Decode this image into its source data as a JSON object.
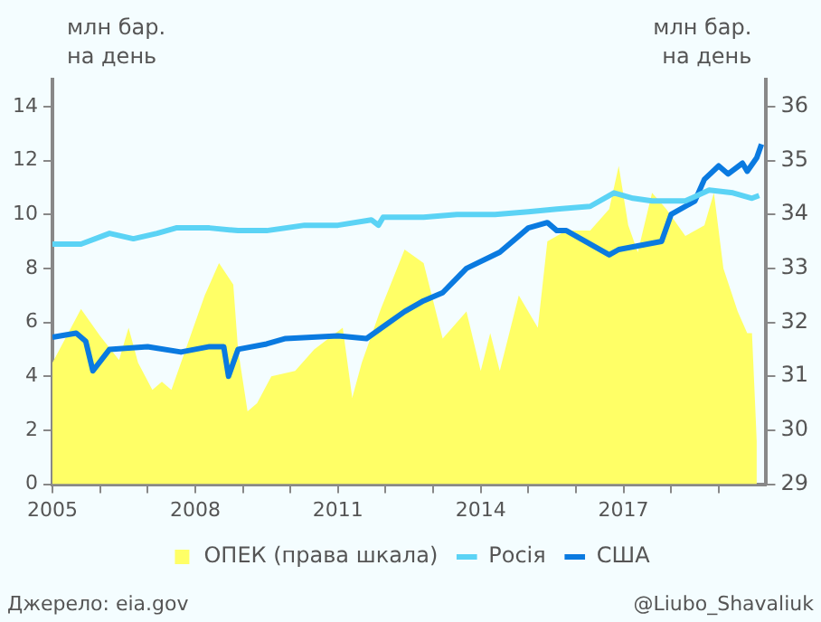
{
  "chart_data": {
    "type": "line",
    "ylabel": "млн бар. на день",
    "y2label": "млн бар. на день",
    "xlim": [
      2005,
      2020
    ],
    "xticks": [
      2005,
      {
        "value": 2006,
        "label": null
      },
      {
        "value": 2007,
        "label": null
      },
      2008,
      {
        "value": 2009,
        "label": null
      },
      {
        "value": 2010,
        "label": null
      },
      2011,
      {
        "value": 2012,
        "label": null
      },
      {
        "value": 2013,
        "label": null
      },
      2014,
      {
        "value": 2015,
        "label": null
      },
      {
        "value": 2016,
        "label": null
      },
      2017,
      {
        "value": 2018,
        "label": null
      },
      {
        "value": 2019,
        "label": null
      }
    ],
    "ylim": [
      0,
      15
    ],
    "yticks": [
      0,
      2,
      4,
      6,
      8,
      10,
      12,
      14
    ],
    "y2lim": [
      29,
      36.5
    ],
    "y2ticks": [
      29,
      30,
      31,
      32,
      33,
      34,
      35,
      36
    ],
    "legend": "bottom",
    "series": [
      {
        "name": "ОПЕК (права шкала)",
        "type": "area",
        "axis": "y2",
        "color": "#ffff66",
        "x": [
          2005.0,
          2005.6,
          2006.0,
          2006.4,
          2006.6,
          2006.8,
          2007.1,
          2007.3,
          2007.5,
          2007.9,
          2008.2,
          2008.5,
          2008.8,
          2008.9,
          2009.1,
          2009.3,
          2009.6,
          2010.1,
          2010.5,
          2011.1,
          2011.3,
          2011.5,
          2011.9,
          2012.4,
          2012.8,
          2013.2,
          2013.7,
          2014.0,
          2014.2,
          2014.4,
          2014.8,
          2015.2,
          2015.4,
          2015.8,
          2016.3,
          2016.7,
          2016.9,
          2017.1,
          2017.3,
          2017.6,
          2017.9,
          2018.3,
          2018.7,
          2018.9,
          2019.1,
          2019.4,
          2019.6,
          2019.7,
          2019.8
        ],
        "values": [
          31.25,
          32.25,
          31.75,
          31.3,
          31.9,
          31.25,
          30.75,
          30.9,
          30.75,
          31.75,
          32.5,
          33.1,
          32.7,
          31.5,
          30.35,
          30.5,
          31.0,
          31.1,
          31.5,
          31.9,
          30.6,
          31.25,
          32.25,
          33.35,
          33.1,
          31.7,
          32.2,
          31.1,
          31.8,
          31.1,
          32.5,
          31.9,
          33.5,
          33.7,
          33.7,
          34.1,
          34.9,
          33.8,
          33.3,
          34.4,
          34.1,
          33.6,
          33.8,
          34.4,
          33.0,
          32.2,
          31.8,
          31.8,
          29.8
        ]
      },
      {
        "name": "Росія",
        "type": "line",
        "color": "#5bd3f5",
        "x": [
          2005.0,
          2005.6,
          2006.2,
          2006.7,
          2007.2,
          2007.6,
          2008.3,
          2008.9,
          2009.5,
          2010.3,
          2011.0,
          2011.7,
          2011.85,
          2011.95,
          2012.8,
          2013.5,
          2014.3,
          2015.0,
          2015.6,
          2016.3,
          2016.8,
          2017.2,
          2017.6,
          2018.3,
          2018.8,
          2019.3,
          2019.7,
          2019.85
        ],
        "values": [
          8.9,
          8.9,
          9.3,
          9.1,
          9.3,
          9.5,
          9.5,
          9.4,
          9.4,
          9.6,
          9.6,
          9.8,
          9.6,
          9.9,
          9.9,
          10.0,
          10.0,
          10.1,
          10.2,
          10.3,
          10.8,
          10.6,
          10.5,
          10.5,
          10.9,
          10.8,
          10.6,
          10.7
        ]
      },
      {
        "name": "США",
        "type": "line",
        "color": "#0a7ae0",
        "x": [
          2005.0,
          2005.5,
          2005.7,
          2005.85,
          2006.2,
          2007.0,
          2007.7,
          2008.3,
          2008.6,
          2008.7,
          2008.9,
          2009.5,
          2009.9,
          2011.0,
          2011.6,
          2012.0,
          2012.4,
          2012.8,
          2013.2,
          2013.7,
          2014.4,
          2015.0,
          2015.4,
          2015.6,
          2015.8,
          2016.7,
          2016.9,
          2017.5,
          2017.8,
          2018.0,
          2018.5,
          2018.7,
          2019.0,
          2019.2,
          2019.5,
          2019.6,
          2019.8,
          2019.9
        ],
        "values": [
          5.45,
          5.6,
          5.3,
          4.2,
          5.0,
          5.1,
          4.9,
          5.1,
          5.1,
          4.0,
          5.0,
          5.2,
          5.4,
          5.5,
          5.4,
          5.9,
          6.4,
          6.8,
          7.1,
          8.0,
          8.6,
          9.5,
          9.7,
          9.4,
          9.4,
          8.5,
          8.7,
          8.9,
          9.0,
          10.0,
          10.5,
          11.3,
          11.8,
          11.5,
          11.9,
          11.6,
          12.1,
          12.6
        ]
      }
    ],
    "annotations": [
      "Джерело: eia.gov",
      "@Liubo_Shavaliuk"
    ]
  }
}
